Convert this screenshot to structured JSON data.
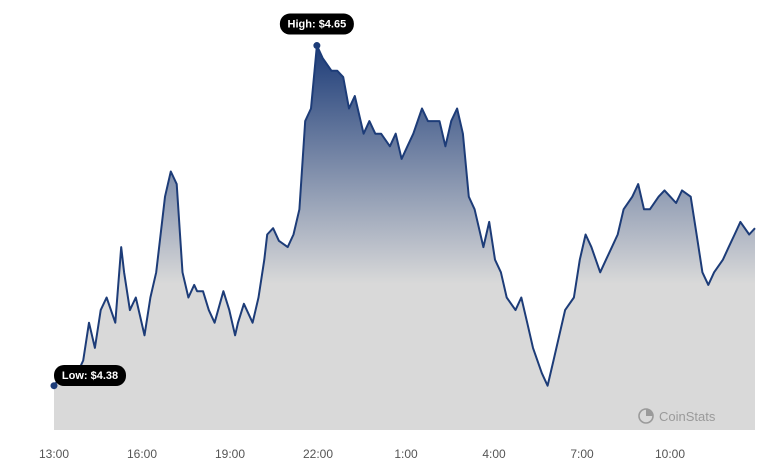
{
  "chart_data": {
    "type": "area",
    "title": "",
    "xlabel": "",
    "ylabel": "",
    "x_ticks": [
      "13:00",
      "16:00",
      "19:00",
      "22:00",
      "1:00",
      "4:00",
      "7:00",
      "10:00"
    ],
    "ylim": [
      4.375,
      4.656
    ],
    "grid": false,
    "legend": "none",
    "colors": {
      "line": "#1d3c78",
      "fill_top": "#1d3c78",
      "fill_bottom": "#d9d9d9"
    },
    "high": {
      "label": "High: $4.65",
      "value": 4.65
    },
    "low": {
      "label": "Low: $4.38",
      "value": 4.38
    },
    "x": [
      0,
      0.3,
      0.5,
      0.7,
      1.0,
      1.2,
      1.4,
      1.6,
      1.8,
      2.1,
      2.3,
      2.4,
      2.6,
      2.8,
      3.1,
      3.3,
      3.5,
      3.8,
      4.0,
      4.2,
      4.4,
      4.6,
      4.8,
      4.9,
      5.1,
      5.3,
      5.5,
      5.8,
      6.0,
      6.2,
      6.3,
      6.5,
      6.8,
      7.0,
      7.2,
      7.3,
      7.5,
      7.7,
      8.0,
      8.2,
      8.4,
      8.6,
      8.8,
      9.0,
      9.2,
      9.5,
      9.7,
      9.9,
      10.1,
      10.3,
      10.6,
      10.8,
      11.0,
      11.2,
      11.5,
      11.7,
      11.9,
      12.1,
      12.3,
      12.6,
      12.8,
      13.0,
      13.2,
      13.4,
      13.6,
      13.8,
      14.0,
      14.2,
      14.4,
      14.7,
      14.9,
      15.1,
      15.3,
      15.5,
      15.8,
      16.0,
      16.2,
      16.4,
      16.7,
      16.9,
      17.1,
      17.3,
      17.5,
      17.8,
      18.0,
      18.2,
      18.4,
      18.7,
      18.9,
      19.1,
      19.3,
      19.5,
      19.8,
      20.0,
      20.2,
      20.4,
      20.7,
      20.9,
      21.1,
      21.3,
      21.5,
      21.8,
      22.0,
      22.2,
      22.4,
      22.6,
      22.9,
      23.1,
      23.3,
      23.5,
      23.8,
      24.0
    ],
    "values": [
      4.38,
      4.39,
      4.395,
      4.385,
      4.4,
      4.43,
      4.41,
      4.44,
      4.45,
      4.43,
      4.49,
      4.47,
      4.44,
      4.45,
      4.42,
      4.45,
      4.47,
      4.53,
      4.55,
      4.54,
      4.47,
      4.45,
      4.46,
      4.455,
      4.455,
      4.44,
      4.43,
      4.455,
      4.44,
      4.42,
      4.43,
      4.445,
      4.43,
      4.45,
      4.48,
      4.5,
      4.505,
      4.495,
      4.49,
      4.5,
      4.52,
      4.59,
      4.6,
      4.65,
      4.64,
      4.63,
      4.63,
      4.625,
      4.6,
      4.61,
      4.58,
      4.59,
      4.58,
      4.58,
      4.57,
      4.58,
      4.56,
      4.57,
      4.58,
      4.6,
      4.59,
      4.59,
      4.59,
      4.57,
      4.59,
      4.6,
      4.58,
      4.53,
      4.52,
      4.49,
      4.51,
      4.48,
      4.47,
      4.45,
      4.44,
      4.45,
      4.43,
      4.41,
      4.39,
      4.38,
      4.4,
      4.42,
      4.44,
      4.45,
      4.48,
      4.5,
      4.49,
      4.47,
      4.48,
      4.49,
      4.5,
      4.52,
      4.53,
      4.54,
      4.52,
      4.52,
      4.53,
      4.535,
      4.53,
      4.525,
      4.535,
      4.53,
      4.5,
      4.47,
      4.46,
      4.47,
      4.48,
      4.49,
      4.5,
      4.51,
      4.5,
      4.505
    ]
  },
  "watermark": {
    "text": "CoinStats",
    "icon": "coinstats-logo-icon"
  }
}
